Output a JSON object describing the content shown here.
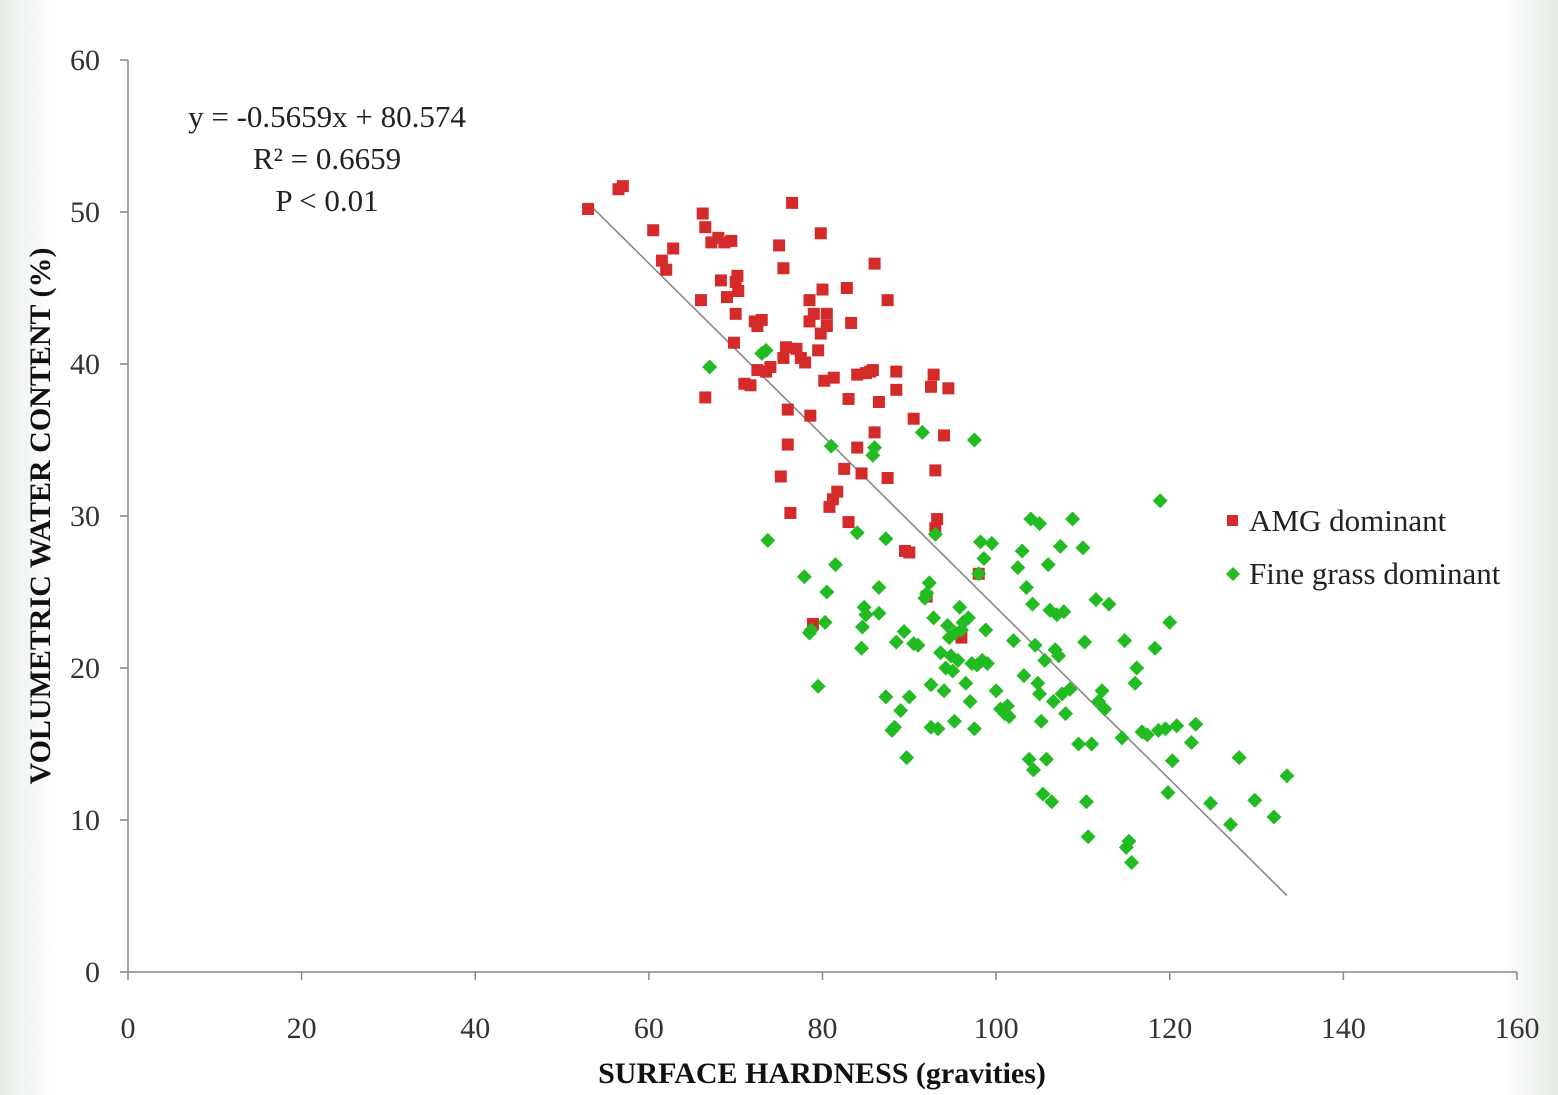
{
  "chart_data": {
    "type": "scatter",
    "xlabel": "SURFACE HARDNESS (gravities)",
    "ylabel": "VOLUMETRIC WATER CONTENT (%)",
    "xlim": [
      0,
      160
    ],
    "ylim": [
      0,
      60
    ],
    "xticks": [
      0,
      20,
      40,
      60,
      80,
      100,
      120,
      140,
      160
    ],
    "yticks": [
      0,
      10,
      20,
      30,
      40,
      50,
      60
    ],
    "grid": false,
    "legend_position": "right",
    "annotations": [
      "y = -0.5659x + 80.574",
      "R² = 0.6659",
      "P < 0.01"
    ],
    "trendline": {
      "slope": -0.5659,
      "intercept": 80.574,
      "x_range": [
        53,
        133.5
      ],
      "color": "#888888"
    },
    "series": [
      {
        "name": "AMG dominant",
        "marker": "square",
        "color": "#d42a2a",
        "points": [
          [
            53,
            50.2
          ],
          [
            56.5,
            51.5
          ],
          [
            57,
            51.7
          ],
          [
            60.5,
            48.8
          ],
          [
            61.5,
            46.8
          ],
          [
            62,
            46.2
          ],
          [
            62.8,
            47.6
          ],
          [
            66,
            44.2
          ],
          [
            66.2,
            49.9
          ],
          [
            66.5,
            49
          ],
          [
            66.5,
            37.8
          ],
          [
            67.2,
            48
          ],
          [
            68,
            48.3
          ],
          [
            68.3,
            45.5
          ],
          [
            68.7,
            48
          ],
          [
            69,
            44.4
          ],
          [
            69.5,
            48.1
          ],
          [
            70,
            45.4
          ],
          [
            70.2,
            45.8
          ],
          [
            70.3,
            44.8
          ],
          [
            70,
            43.3
          ],
          [
            69.8,
            41.4
          ],
          [
            71,
            38.7
          ],
          [
            71.7,
            38.6
          ],
          [
            72.2,
            42.8
          ],
          [
            72.5,
            42.5
          ],
          [
            73,
            42.9
          ],
          [
            72.5,
            39.6
          ],
          [
            73.5,
            39.5
          ],
          [
            74,
            39.8
          ],
          [
            75,
            47.8
          ],
          [
            75.5,
            46.3
          ],
          [
            75.8,
            41.1
          ],
          [
            75.5,
            40.4
          ],
          [
            75.2,
            32.6
          ],
          [
            76,
            34.7
          ],
          [
            76,
            37
          ],
          [
            76.3,
            30.2
          ],
          [
            76.5,
            50.6
          ],
          [
            77,
            41
          ],
          [
            77.5,
            40.4
          ],
          [
            78,
            40.1
          ],
          [
            78.5,
            44.2
          ],
          [
            78.5,
            42.8
          ],
          [
            78.6,
            36.6
          ],
          [
            78.9,
            22.9
          ],
          [
            79,
            43.3
          ],
          [
            79.5,
            40.9
          ],
          [
            79.8,
            42
          ],
          [
            79.8,
            48.6
          ],
          [
            80,
            44.9
          ],
          [
            80.2,
            38.9
          ],
          [
            80.5,
            42.5
          ],
          [
            80.5,
            43.3
          ],
          [
            80.8,
            30.6
          ],
          [
            81.2,
            31.1
          ],
          [
            81.3,
            39.1
          ],
          [
            81.7,
            31.6
          ],
          [
            82.5,
            33.1
          ],
          [
            82.8,
            45
          ],
          [
            83,
            37.7
          ],
          [
            83,
            29.6
          ],
          [
            83.3,
            42.7
          ],
          [
            84,
            34.5
          ],
          [
            84,
            39.3
          ],
          [
            84.5,
            32.8
          ],
          [
            85,
            39.4
          ],
          [
            85.5,
            39.5
          ],
          [
            85.8,
            39.6
          ],
          [
            86,
            46.6
          ],
          [
            86,
            35.5
          ],
          [
            86.5,
            37.5
          ],
          [
            87.5,
            32.5
          ],
          [
            87.5,
            44.2
          ],
          [
            88.5,
            39.5
          ],
          [
            88.5,
            38.3
          ],
          [
            89.5,
            27.7
          ],
          [
            90,
            27.6
          ],
          [
            90.5,
            36.4
          ],
          [
            92,
            24.7
          ],
          [
            92.5,
            38.5
          ],
          [
            92.8,
            39.3
          ],
          [
            93,
            33
          ],
          [
            93,
            29.2
          ],
          [
            93.2,
            29.8
          ],
          [
            94,
            35.3
          ],
          [
            94.5,
            38.4
          ],
          [
            96,
            22
          ],
          [
            98,
            26.2
          ]
        ]
      },
      {
        "name": "Fine grass dominant",
        "marker": "diamond",
        "color": "#22bb22",
        "points": [
          [
            67,
            39.8
          ],
          [
            73,
            40.7
          ],
          [
            73.5,
            40.9
          ],
          [
            73.7,
            28.4
          ],
          [
            77.9,
            26
          ],
          [
            78.5,
            22.3
          ],
          [
            78.7,
            22.5
          ],
          [
            79.5,
            18.8
          ],
          [
            80.3,
            23
          ],
          [
            80.5,
            25
          ],
          [
            81,
            34.6
          ],
          [
            81.5,
            26.8
          ],
          [
            84,
            28.9
          ],
          [
            84.5,
            21.3
          ],
          [
            84.8,
            24
          ],
          [
            84.6,
            22.7
          ],
          [
            85,
            23.5
          ],
          [
            85.8,
            34
          ],
          [
            86,
            34.5
          ],
          [
            86.5,
            25.3
          ],
          [
            86.5,
            23.6
          ],
          [
            87.3,
            28.5
          ],
          [
            87.3,
            18.1
          ],
          [
            88,
            15.9
          ],
          [
            88.3,
            16.1
          ],
          [
            88.5,
            21.7
          ],
          [
            89,
            17.2
          ],
          [
            89.4,
            22.4
          ],
          [
            89.7,
            14.1
          ],
          [
            90,
            18.1
          ],
          [
            90.5,
            21.6
          ],
          [
            91,
            21.5
          ],
          [
            91.5,
            35.5
          ],
          [
            91.8,
            24.6
          ],
          [
            92,
            24.9
          ],
          [
            92.3,
            25.6
          ],
          [
            92.5,
            18.9
          ],
          [
            92.5,
            16.1
          ],
          [
            92.8,
            23.3
          ],
          [
            93,
            28.8
          ],
          [
            93.3,
            16
          ],
          [
            93.6,
            21
          ],
          [
            94,
            18.5
          ],
          [
            94.2,
            20
          ],
          [
            94.4,
            22.8
          ],
          [
            94.6,
            22
          ],
          [
            94.8,
            20.8
          ],
          [
            95,
            19.8
          ],
          [
            95.2,
            16.5
          ],
          [
            95.3,
            22.3
          ],
          [
            95.6,
            20.5
          ],
          [
            95.8,
            24
          ],
          [
            96,
            22.5
          ],
          [
            96.2,
            23
          ],
          [
            96.5,
            19
          ],
          [
            96.8,
            23.3
          ],
          [
            97,
            17.8
          ],
          [
            97.2,
            20.3
          ],
          [
            97.5,
            35
          ],
          [
            97.5,
            16
          ],
          [
            97.8,
            20.2
          ],
          [
            98,
            26.2
          ],
          [
            98.2,
            28.3
          ],
          [
            98.4,
            20.5
          ],
          [
            98.6,
            27.2
          ],
          [
            98.8,
            22.5
          ],
          [
            99,
            20.3
          ],
          [
            99.5,
            28.2
          ],
          [
            100,
            18.5
          ],
          [
            100.5,
            17.3
          ],
          [
            101,
            17
          ],
          [
            101.3,
            17.5
          ],
          [
            101.5,
            16.8
          ],
          [
            102,
            21.8
          ],
          [
            102.5,
            26.6
          ],
          [
            103,
            27.7
          ],
          [
            103.2,
            19.5
          ],
          [
            103.5,
            25.3
          ],
          [
            103.8,
            14
          ],
          [
            104,
            29.8
          ],
          [
            104.2,
            24.2
          ],
          [
            104.3,
            13.3
          ],
          [
            104.5,
            21.5
          ],
          [
            104.8,
            19
          ],
          [
            105,
            18.3
          ],
          [
            105,
            29.5
          ],
          [
            105.2,
            16.5
          ],
          [
            105.4,
            11.7
          ],
          [
            105.6,
            20.5
          ],
          [
            105.8,
            14
          ],
          [
            106,
            26.8
          ],
          [
            106.2,
            23.8
          ],
          [
            106.4,
            11.2
          ],
          [
            106.6,
            17.8
          ],
          [
            106.8,
            21.2
          ],
          [
            107,
            23.5
          ],
          [
            107.2,
            20.8
          ],
          [
            107.4,
            28
          ],
          [
            107.6,
            18.3
          ],
          [
            107.8,
            23.7
          ],
          [
            108,
            17
          ],
          [
            108.5,
            18.6
          ],
          [
            108.8,
            29.8
          ],
          [
            109.5,
            15
          ],
          [
            110,
            27.9
          ],
          [
            110.2,
            21.7
          ],
          [
            110.4,
            11.2
          ],
          [
            110.6,
            8.9
          ],
          [
            111,
            15
          ],
          [
            111.5,
            24.5
          ],
          [
            111.8,
            17.8
          ],
          [
            112.2,
            18.5
          ],
          [
            112.5,
            17.3
          ],
          [
            113,
            24.2
          ],
          [
            114.5,
            15.4
          ],
          [
            114.8,
            21.8
          ],
          [
            115,
            8.2
          ],
          [
            115.3,
            8.6
          ],
          [
            115.6,
            7.2
          ],
          [
            116,
            19
          ],
          [
            116.2,
            20
          ],
          [
            116.8,
            15.8
          ],
          [
            117.4,
            15.6
          ],
          [
            118.3,
            21.3
          ],
          [
            118.7,
            15.9
          ],
          [
            118.9,
            31
          ],
          [
            119.5,
            16
          ],
          [
            119.8,
            11.8
          ],
          [
            120,
            23
          ],
          [
            120.3,
            13.9
          ],
          [
            120.8,
            16.2
          ],
          [
            122.5,
            15.1
          ],
          [
            123,
            16.3
          ],
          [
            124.7,
            11.1
          ],
          [
            127,
            9.7
          ],
          [
            128,
            14.1
          ],
          [
            129.8,
            11.3
          ],
          [
            132,
            10.2
          ],
          [
            133.5,
            12.9
          ]
        ]
      }
    ]
  }
}
